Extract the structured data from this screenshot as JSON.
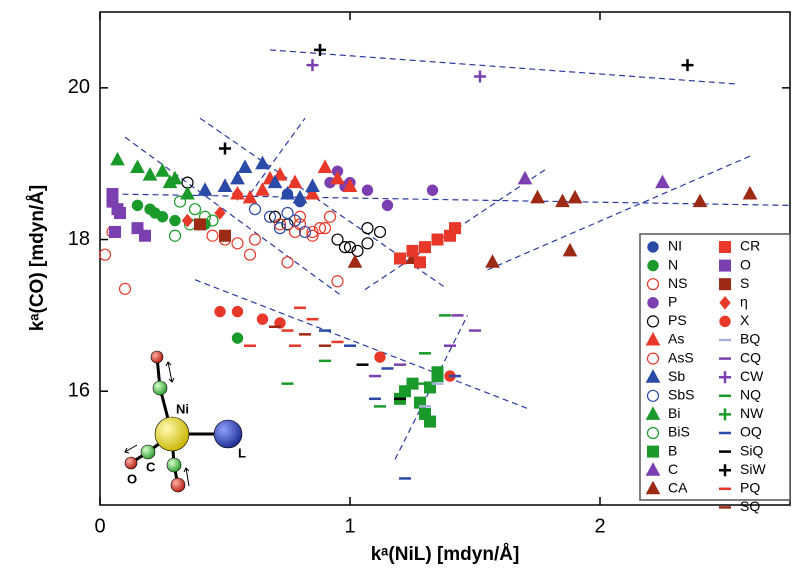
{
  "chart_data": {
    "type": "scatter",
    "x_label": "kᵃ(NiL) [mdyn/Å]",
    "y_label": "kᵃ(CO) [mdyn/Å]",
    "xlim": [
      0,
      2.76
    ],
    "ylim": [
      14.5,
      21.0
    ],
    "xticks": [
      0,
      1,
      2
    ],
    "yticks": [
      16,
      18,
      20
    ],
    "legend": "lower right",
    "inset_labels": [
      "Ni",
      "C",
      "O",
      "L"
    ],
    "fit_lines": [
      {
        "x": [
          0.68,
          2.55
        ],
        "y": [
          20.5,
          20.05
        ]
      },
      {
        "x": [
          0.1,
          0.97
        ],
        "y": [
          19.35,
          17.25
        ]
      },
      {
        "x": [
          0.05,
          2.76
        ],
        "y": [
          18.6,
          18.45
        ]
      },
      {
        "x": [
          0.4,
          1.38
        ],
        "y": [
          19.6,
          17.37
        ]
      },
      {
        "x": [
          0.6,
          0.82
        ],
        "y": [
          18.6,
          19.6
        ]
      },
      {
        "x": [
          1.06,
          1.78
        ],
        "y": [
          17.34,
          18.92
        ]
      },
      {
        "x": [
          1.55,
          2.6
        ],
        "y": [
          17.6,
          19.1
        ]
      },
      {
        "x": [
          0.38,
          1.72
        ],
        "y": [
          17.47,
          15.76
        ]
      },
      {
        "x": [
          1.18,
          1.47
        ],
        "y": [
          15.1,
          17.0
        ]
      }
    ],
    "series": [
      {
        "name": "NI",
        "color": "#2a4aa8",
        "marker": "circle",
        "filled": true,
        "x": [
          0.75,
          0.8
        ],
        "y": [
          18.6,
          18.5
        ]
      },
      {
        "name": "N",
        "color": "#1a9a2a",
        "marker": "circle",
        "filled": true,
        "x": [
          0.15,
          0.2,
          0.22,
          0.25,
          0.3,
          0.42,
          0.55
        ],
        "y": [
          18.45,
          18.4,
          18.35,
          18.3,
          18.25,
          18.2,
          16.7
        ]
      },
      {
        "name": "NS",
        "color": "#e8382a",
        "marker": "circle",
        "filled": false,
        "x": [
          0.02,
          0.1,
          0.05,
          0.45,
          0.5,
          0.55,
          0.62,
          0.6,
          0.75,
          0.8,
          0.85,
          0.9,
          0.95
        ],
        "y": [
          17.8,
          17.35,
          18.1,
          18.05,
          18.0,
          17.95,
          18.0,
          17.8,
          17.7,
          18.2,
          18.1,
          18.15,
          17.45
        ]
      },
      {
        "name": "P",
        "color": "#7b3fb0",
        "marker": "circle",
        "filled": true,
        "x": [
          0.92,
          0.95,
          0.98,
          1.0,
          1.07,
          1.15,
          1.33
        ],
        "y": [
          18.75,
          18.9,
          18.7,
          18.75,
          18.65,
          18.45,
          18.65
        ]
      },
      {
        "name": "PS",
        "color": "#000000",
        "marker": "circle",
        "filled": false,
        "x": [
          0.35,
          0.7,
          0.75,
          0.95,
          0.98,
          1.0,
          1.03,
          1.07,
          1.07,
          1.12
        ],
        "y": [
          18.75,
          18.3,
          18.2,
          18.0,
          17.9,
          17.9,
          17.85,
          18.15,
          17.95,
          18.1
        ]
      },
      {
        "name": "As",
        "color": "#e8382a",
        "marker": "triangle",
        "filled": true,
        "x": [
          0.5,
          0.55,
          0.6,
          0.65,
          0.68,
          0.72,
          0.78,
          0.85,
          0.9,
          0.95,
          1.0
        ],
        "y": [
          18.7,
          18.6,
          18.55,
          18.65,
          18.8,
          18.85,
          18.75,
          18.6,
          18.95,
          18.8,
          18.7
        ]
      },
      {
        "name": "AsS",
        "color": "#e8382a",
        "marker": "circle",
        "filled": false,
        "x": [
          0.72,
          0.78,
          0.8,
          0.85,
          0.88,
          0.92
        ],
        "y": [
          18.2,
          18.1,
          18.3,
          18.05,
          18.15,
          18.3
        ]
      },
      {
        "name": "Sb",
        "color": "#2a4aa8",
        "marker": "triangle",
        "filled": true,
        "x": [
          0.42,
          0.5,
          0.55,
          0.58,
          0.65,
          0.7,
          0.75,
          0.8,
          0.85
        ],
        "y": [
          18.65,
          18.7,
          18.8,
          18.95,
          19.0,
          18.75,
          18.6,
          18.55,
          18.7
        ]
      },
      {
        "name": "SbS",
        "color": "#2a4aa8",
        "marker": "circle",
        "filled": false,
        "x": [
          0.62,
          0.68,
          0.72,
          0.75,
          0.78,
          0.82
        ],
        "y": [
          18.4,
          18.3,
          18.15,
          18.35,
          18.25,
          18.1
        ]
      },
      {
        "name": "Bi",
        "color": "#1a9a2a",
        "marker": "triangle",
        "filled": true,
        "x": [
          0.07,
          0.15,
          0.2,
          0.25,
          0.28,
          0.3,
          0.35
        ],
        "y": [
          19.05,
          18.95,
          18.85,
          18.9,
          18.75,
          18.8,
          18.6
        ]
      },
      {
        "name": "BiS",
        "color": "#1a9a2a",
        "marker": "circle",
        "filled": false,
        "x": [
          0.3,
          0.32,
          0.36,
          0.38,
          0.42,
          0.45
        ],
        "y": [
          18.05,
          18.5,
          18.2,
          18.4,
          18.3,
          18.25
        ]
      },
      {
        "name": "B",
        "color": "#1a9a2a",
        "marker": "square",
        "filled": true,
        "x": [
          1.2,
          1.22,
          1.25,
          1.28,
          1.3,
          1.32,
          1.32,
          1.35,
          1.35
        ],
        "y": [
          15.9,
          16.0,
          16.1,
          15.85,
          15.7,
          16.05,
          15.6,
          16.2,
          16.25
        ]
      },
      {
        "name": "C",
        "color": "#7b3fb0",
        "marker": "triangle",
        "filled": true,
        "x": [
          1.7,
          2.25
        ],
        "y": [
          18.8,
          18.75
        ]
      },
      {
        "name": "CA",
        "color": "#9c2a14",
        "marker": "triangle",
        "filled": true,
        "x": [
          1.02,
          1.25,
          1.57,
          1.75,
          1.85,
          1.88,
          1.9,
          2.4,
          2.6
        ],
        "y": [
          17.7,
          17.75,
          17.7,
          18.55,
          18.5,
          17.85,
          18.55,
          18.5,
          18.6
        ]
      },
      {
        "name": "CR",
        "color": "#e8382a",
        "marker": "square",
        "filled": true,
        "x": [
          1.2,
          1.25,
          1.28,
          1.3,
          1.35,
          1.4,
          1.42
        ],
        "y": [
          17.75,
          17.85,
          17.7,
          17.9,
          18.0,
          18.05,
          18.15
        ]
      },
      {
        "name": "O",
        "color": "#7b3fb0",
        "marker": "square",
        "filled": true,
        "x": [
          0.05,
          0.05,
          0.06,
          0.07,
          0.08,
          0.15,
          0.18
        ],
        "y": [
          18.6,
          18.5,
          18.1,
          18.4,
          18.35,
          18.15,
          18.05
        ]
      },
      {
        "name": "S",
        "color": "#9c2a14",
        "marker": "square",
        "filled": true,
        "x": [
          0.4,
          0.5
        ],
        "y": [
          18.2,
          18.05
        ]
      },
      {
        "name": "η",
        "color": "#e8382a",
        "marker": "diamond",
        "filled": true,
        "x": [
          0.35,
          0.48,
          0.55
        ],
        "y": [
          18.25,
          18.35,
          18.6
        ]
      },
      {
        "name": "X",
        "color": "#e8382a",
        "marker": "circle",
        "filled": true,
        "x": [
          0.48,
          0.55,
          0.65,
          0.72,
          1.12,
          1.4
        ],
        "y": [
          17.05,
          17.05,
          16.95,
          16.9,
          16.45,
          16.2
        ]
      },
      {
        "name": "BQ",
        "color": "#a8b0dc",
        "marker": "dash",
        "filled": true,
        "x": [
          1.3,
          1.35
        ],
        "y": [
          15.8,
          16.1
        ]
      },
      {
        "name": "CQ",
        "color": "#7b3fb0",
        "marker": "dash",
        "filled": true,
        "x": [
          1.1,
          1.2,
          1.4,
          1.43,
          1.5
        ],
        "y": [
          16.2,
          16.35,
          16.6,
          17.0,
          16.8
        ]
      },
      {
        "name": "CW",
        "color": "#7b3fb0",
        "marker": "plus",
        "filled": true,
        "x": [
          0.85,
          1.52
        ],
        "y": [
          20.3,
          20.15
        ]
      },
      {
        "name": "NQ",
        "color": "#1a9a2a",
        "marker": "dash",
        "filled": true,
        "x": [
          0.75,
          0.9,
          1.12,
          1.2,
          1.28,
          1.3,
          1.38
        ],
        "y": [
          16.1,
          16.4,
          15.8,
          15.95,
          16.1,
          16.5,
          17.0
        ]
      },
      {
        "name": "NW",
        "color": "#1a9a2a",
        "marker": "plus",
        "filled": true,
        "x": [],
        "y": []
      },
      {
        "name": "OQ",
        "color": "#2a4aa8",
        "marker": "dash",
        "filled": true,
        "x": [
          0.9,
          1.0,
          1.1,
          1.15,
          1.22,
          1.42
        ],
        "y": [
          16.8,
          16.6,
          15.9,
          16.3,
          14.85,
          16.2
        ]
      },
      {
        "name": "SiQ",
        "color": "#000000",
        "marker": "dash",
        "filled": true,
        "x": [
          1.05,
          1.2
        ],
        "y": [
          16.35,
          15.9
        ]
      },
      {
        "name": "SiW",
        "color": "#000000",
        "marker": "plus",
        "filled": true,
        "x": [
          0.5,
          0.88,
          2.35
        ],
        "y": [
          19.2,
          20.5,
          20.3
        ]
      },
      {
        "name": "PQ",
        "color": "#e8382a",
        "marker": "dash",
        "filled": true,
        "x": [
          0.6,
          0.75,
          0.78,
          0.8,
          0.85,
          0.95
        ],
        "y": [
          16.6,
          16.8,
          16.6,
          17.1,
          16.95,
          16.65
        ]
      },
      {
        "name": "SQ",
        "color": "#9c2a14",
        "marker": "dash",
        "filled": true,
        "x": [
          0.7,
          0.82,
          0.9
        ],
        "y": [
          16.85,
          16.75,
          16.6
        ]
      }
    ]
  }
}
